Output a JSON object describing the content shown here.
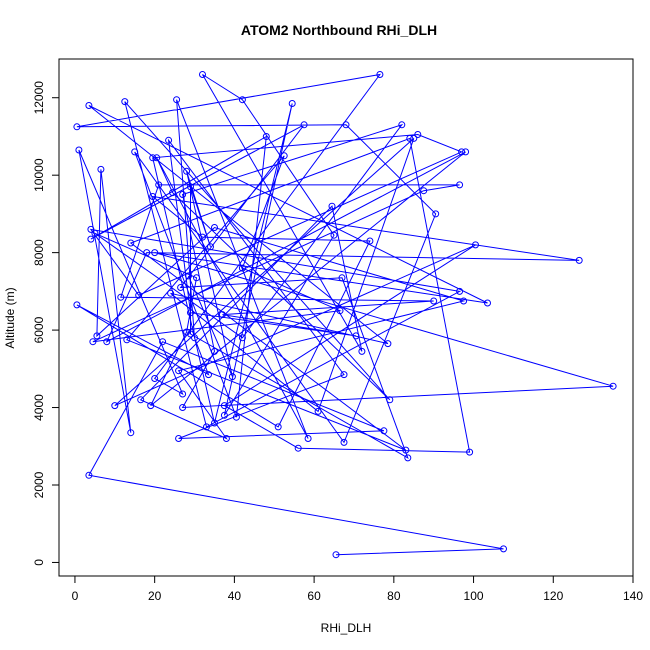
{
  "chart_data": {
    "type": "line",
    "title": "ATOM2 Northbound RHi_DLH",
    "xlabel": "RHi_DLH",
    "ylabel": "Altitude (m)",
    "xlim": [
      -4,
      140
    ],
    "ylim": [
      -350,
      13000
    ],
    "x_ticks": [
      0,
      20,
      40,
      60,
      80,
      100,
      120,
      140
    ],
    "y_ticks": [
      0,
      2000,
      4000,
      6000,
      8000,
      10000,
      12000
    ],
    "grid": false,
    "legend": "none",
    "color": "#0000ff",
    "marker": "open-circle",
    "series": [
      {
        "x": [
          65.5,
          107.5,
          3.5,
          22,
          77.5,
          26,
          67.5,
          23.5,
          29,
          70.5,
          37,
          90,
          11.5,
          21,
          96.5,
          87.5,
          4.5,
          66.5,
          42,
          52.5,
          13,
          83,
          14,
          84,
          99,
          56,
          37.5,
          100.5,
          10,
          85,
          61,
          24,
          78.5,
          3.5,
          103.5,
          20,
          135,
          27,
          35,
          27,
          82,
          42,
          5,
          30.5,
          28,
          19,
          98,
          8,
          18,
          126.5,
          19.5,
          32,
          74,
          51,
          0.5,
          33.5,
          30,
          25.5,
          58.5,
          20.5,
          24.5,
          79,
          12.5,
          33,
          96.5,
          4,
          16,
          97,
          86,
          19.5,
          35,
          54.5,
          37.5,
          65,
          42,
          32,
          72,
          64.5,
          16.5,
          38,
          26,
          97.5,
          35,
          5.5,
          6.5,
          14,
          1,
          27,
          20,
          76.5,
          0.5,
          68,
          90.5,
          67.5,
          15,
          40.5,
          48,
          4,
          57.5,
          26.5,
          67,
          83.5,
          29,
          29,
          34,
          28,
          39.5,
          28.5
        ],
        "y": [
          200,
          350,
          2250,
          5700,
          3400,
          3200,
          4850,
          10900,
          6450,
          5850,
          6400,
          6750,
          6850,
          9750,
          9750,
          9600,
          5700,
          6500,
          7600,
          10500,
          5750,
          2900,
          8250,
          10950,
          2850,
          2950,
          4050,
          8200,
          4050,
          10950,
          3900,
          6950,
          5650,
          11800,
          6700,
          8000,
          4550,
          4000,
          5450,
          9500,
          11300,
          5800,
          8500,
          7350,
          5950,
          4050,
          10600,
          5700,
          8000,
          7800,
          9450,
          8400,
          8300,
          3500,
          6650,
          4850,
          5800,
          11950,
          3200,
          10450,
          9550,
          4200,
          11900,
          3500,
          7000,
          8600,
          6900,
          10600,
          11050,
          10450,
          3600,
          11850,
          3800,
          8450,
          11950,
          12600,
          5450,
          9200,
          4200,
          3200,
          4950,
          6750,
          8650,
          5850,
          10150,
          3350,
          10650,
          4350,
          4750,
          12600,
          11250,
          11300,
          9000,
          3100,
          10600,
          3750,
          11000,
          8350,
          11300,
          7100,
          7350,
          2700,
          5900,
          9700,
          8150,
          10100,
          4800,
          7400
        ]
      }
    ]
  }
}
